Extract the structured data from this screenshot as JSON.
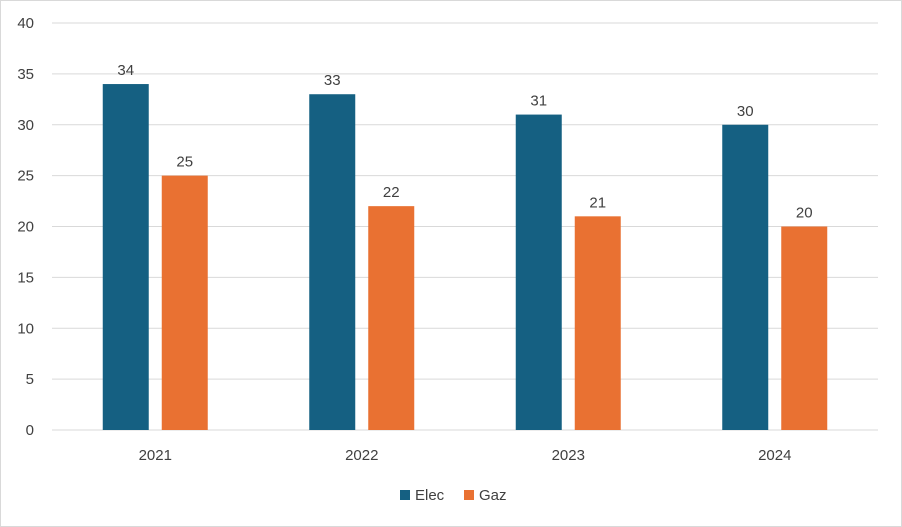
{
  "chart_data": {
    "type": "bar",
    "categories": [
      "2021",
      "2022",
      "2023",
      "2024"
    ],
    "series": [
      {
        "name": "Elec",
        "values": [
          34,
          33,
          31,
          30
        ],
        "color": "#156082"
      },
      {
        "name": "Gaz",
        "values": [
          25,
          22,
          21,
          20
        ],
        "color": "#E97132"
      }
    ],
    "ylim": [
      0,
      40
    ],
    "yticks": [
      0,
      5,
      10,
      15,
      20,
      25,
      30,
      35,
      40
    ],
    "grid": true,
    "legend_position": "bottom",
    "data_labels": true,
    "gridline_color": "#d9d9d9",
    "text_color": "#404040"
  }
}
